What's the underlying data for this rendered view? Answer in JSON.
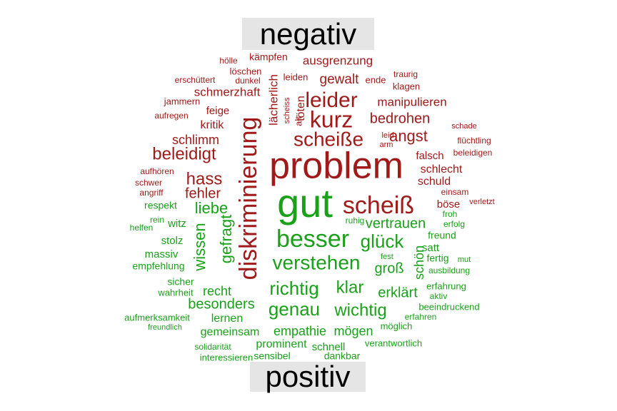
{
  "chart_data": {
    "type": "wordcloud",
    "groups": [
      {
        "name": "negativ",
        "color": "#a11a1a"
      },
      {
        "name": "positiv",
        "color": "#1aa11a"
      }
    ],
    "words": [
      {
        "t": "problem",
        "g": 0
      },
      {
        "t": "diskriminierung",
        "g": 0,
        "r": 1
      },
      {
        "t": "scheiß",
        "g": 0
      },
      {
        "t": "kurz",
        "g": 0
      },
      {
        "t": "leider",
        "g": 0
      },
      {
        "t": "scheiße",
        "g": 0
      },
      {
        "t": "angst",
        "g": 0
      },
      {
        "t": "bedrohen",
        "g": 0
      },
      {
        "t": "beleidigt",
        "g": 0
      },
      {
        "t": "hass",
        "g": 0
      },
      {
        "t": "fehler",
        "g": 0
      },
      {
        "t": "gewalt",
        "g": 0
      },
      {
        "t": "ausgrenzung",
        "g": 0
      },
      {
        "t": "manipulieren",
        "g": 0
      },
      {
        "t": "schmerzhaft",
        "g": 0
      },
      {
        "t": "lächerlich",
        "g": 0,
        "r": 1
      },
      {
        "t": "töten",
        "g": 0,
        "r": 1
      },
      {
        "t": "kritik",
        "g": 0
      },
      {
        "t": "schlimm",
        "g": 0
      },
      {
        "t": "feige",
        "g": 0
      },
      {
        "t": "falsch",
        "g": 0
      },
      {
        "t": "schlecht",
        "g": 0
      },
      {
        "t": "schuld",
        "g": 0
      },
      {
        "t": "böse",
        "g": 0
      },
      {
        "t": "kämpfen",
        "g": 0
      },
      {
        "t": "löschen",
        "g": 0
      },
      {
        "t": "leiden",
        "g": 0
      },
      {
        "t": "ende",
        "g": 0
      },
      {
        "t": "klagen",
        "g": 0
      },
      {
        "t": "traurig",
        "g": 0
      },
      {
        "t": "hölle",
        "g": 0
      },
      {
        "t": "erschüttert",
        "g": 0
      },
      {
        "t": "dunkel",
        "g": 0
      },
      {
        "t": "jammern",
        "g": 0
      },
      {
        "t": "aufregen",
        "g": 0
      },
      {
        "t": "scheiss",
        "g": 0,
        "r": 1
      },
      {
        "t": "alt",
        "g": 0,
        "r": 1
      },
      {
        "t": "leid",
        "g": 0
      },
      {
        "t": "arm",
        "g": 0
      },
      {
        "t": "schade",
        "g": 0
      },
      {
        "t": "flüchtling",
        "g": 0
      },
      {
        "t": "beleidigen",
        "g": 0
      },
      {
        "t": "aufhören",
        "g": 0
      },
      {
        "t": "schwer",
        "g": 0
      },
      {
        "t": "angriff",
        "g": 0
      },
      {
        "t": "einsam",
        "g": 0
      },
      {
        "t": "verletzt",
        "g": 0
      },
      {
        "t": "gut",
        "g": 1
      },
      {
        "t": "besser",
        "g": 1
      },
      {
        "t": "glück",
        "g": 1
      },
      {
        "t": "verstehen",
        "g": 1
      },
      {
        "t": "richtig",
        "g": 1
      },
      {
        "t": "genau",
        "g": 1
      },
      {
        "t": "wichtig",
        "g": 1
      },
      {
        "t": "klar",
        "g": 1
      },
      {
        "t": "liebe",
        "g": 1
      },
      {
        "t": "gefragt",
        "g": 1,
        "r": 1
      },
      {
        "t": "wissen",
        "g": 1,
        "r": 1
      },
      {
        "t": "vertrauen",
        "g": 1
      },
      {
        "t": "groß",
        "g": 1
      },
      {
        "t": "schön",
        "g": 1,
        "r": 1
      },
      {
        "t": "erklärt",
        "g": 1
      },
      {
        "t": "empathie",
        "g": 1
      },
      {
        "t": "mögen",
        "g": 1
      },
      {
        "t": "besonders",
        "g": 1
      },
      {
        "t": "recht",
        "g": 1
      },
      {
        "t": "lernen",
        "g": 1
      },
      {
        "t": "gemeinsam",
        "g": 1
      },
      {
        "t": "prominent",
        "g": 1
      },
      {
        "t": "schnell",
        "g": 1
      },
      {
        "t": "stolz",
        "g": 1
      },
      {
        "t": "massiv",
        "g": 1
      },
      {
        "t": "empfehlung",
        "g": 1
      },
      {
        "t": "freund",
        "g": 1
      },
      {
        "t": "satt",
        "g": 1
      },
      {
        "t": "fertig",
        "g": 1
      },
      {
        "t": "respekt",
        "g": 1
      },
      {
        "t": "witz",
        "g": 1
      },
      {
        "t": "ruhig",
        "g": 1
      },
      {
        "t": "sicher",
        "g": 1
      },
      {
        "t": "wahrheit",
        "g": 1
      },
      {
        "t": "froh",
        "g": 1
      },
      {
        "t": "erfolg",
        "g": 1
      },
      {
        "t": "mut",
        "g": 1
      },
      {
        "t": "ausbildung",
        "g": 1
      },
      {
        "t": "fest",
        "g": 1
      },
      {
        "t": "beeindruckend",
        "g": 1
      },
      {
        "t": "erfahrung",
        "g": 1
      },
      {
        "t": "aktiv",
        "g": 1
      },
      {
        "t": "erfahren",
        "g": 1
      },
      {
        "t": "möglich",
        "g": 1
      },
      {
        "t": "verantwortlich",
        "g": 1
      },
      {
        "t": "sensibel",
        "g": 1
      },
      {
        "t": "dankbar",
        "g": 1
      },
      {
        "t": "interessieren",
        "g": 1
      },
      {
        "t": "solidarität",
        "g": 1
      },
      {
        "t": "aufmerksamkeit",
        "g": 1
      },
      {
        "t": "freundlich",
        "g": 1
      },
      {
        "t": "helfen",
        "g": 1
      },
      {
        "t": "rein",
        "g": 1
      }
    ]
  }
}
